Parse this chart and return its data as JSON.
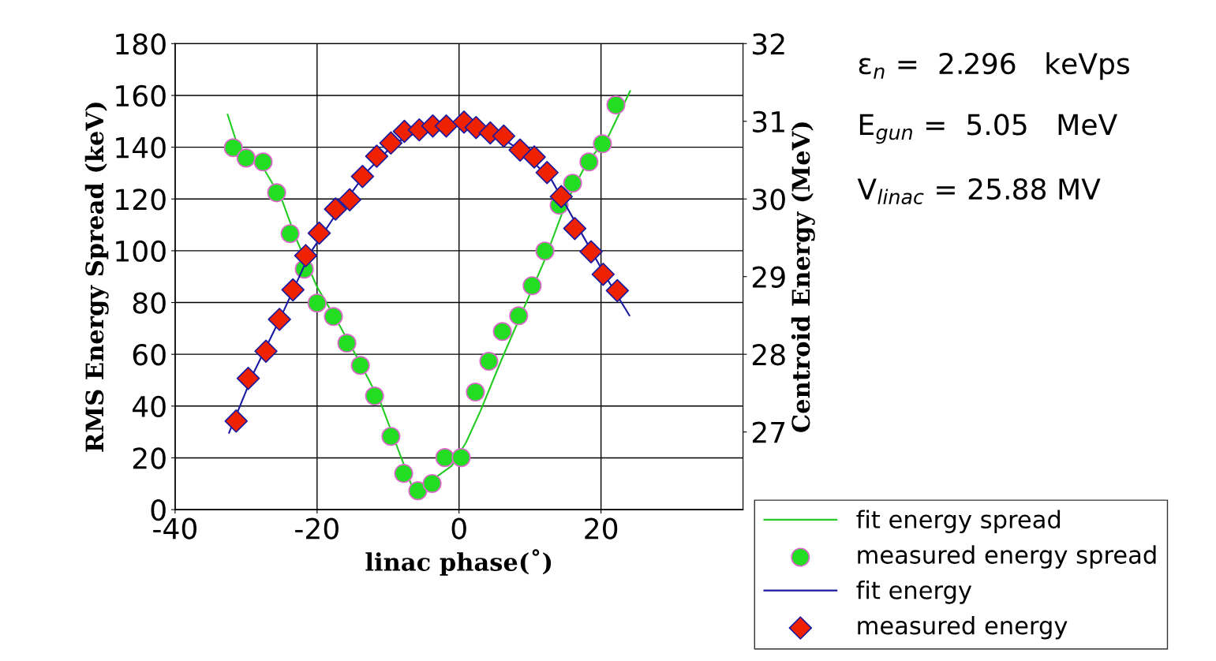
{
  "chart_data": {
    "type": "line",
    "xlabel": "linac phase(˚)",
    "ylabel": "RMS Energy Spread (keV)",
    "y2label": "Centroid Energy (MeV)",
    "xlim": [
      -40,
      40
    ],
    "xticks": [
      -40,
      -20,
      0,
      20
    ],
    "ylim": [
      0,
      180
    ],
    "yticks": [
      0,
      20,
      40,
      60,
      80,
      100,
      120,
      140,
      160,
      180
    ],
    "y2lim": [
      26,
      32
    ],
    "y2ticks": [
      27,
      28,
      29,
      30,
      31,
      32
    ],
    "grid": true,
    "legend": "bottom right",
    "annotations": [
      "ε$_{n}$ =  2.296   keVps",
      "E$_{gun}$ =  5.05   MeV",
      "V$_{linac}$ = 25.88 MV"
    ],
    "series": [
      {
        "name": "fit energy spread",
        "color": "#22cc22",
        "marker": "none",
        "line_style": "solid",
        "x": [
          -32.6,
          -31,
          -28,
          -25,
          -23,
          -20,
          -17,
          -14,
          -11,
          -8,
          -6.5,
          -5,
          -3,
          -1,
          1,
          3,
          6,
          9,
          12,
          15,
          18,
          21,
          24.1
        ],
        "values": [
          152.6,
          139,
          134,
          120,
          105,
          86,
          72,
          57,
          41,
          19,
          8,
          7,
          13,
          17,
          26,
          38,
          58,
          77,
          96,
          118,
          134,
          144,
          161.7
        ]
      },
      {
        "name": "measured energy spread",
        "type": "scatter",
        "color": "#22dd22",
        "marker": "circle",
        "x": [
          -31.8,
          -30,
          -27.6,
          -25.7,
          -23.8,
          -21.8,
          -20,
          -17.7,
          -15.8,
          -13.9,
          -11.9,
          -9.6,
          -7.8,
          -5.8,
          -3.8,
          -2,
          0.3,
          2.3,
          4.2,
          6.1,
          8.4,
          10.3,
          12.1,
          14.1,
          16,
          18.3,
          20.2,
          22.1
        ],
        "values": [
          139.8,
          135.8,
          134.3,
          122.4,
          106.6,
          92.9,
          79.8,
          74.6,
          64.3,
          55.7,
          43.9,
          28.3,
          14.0,
          7.3,
          10.1,
          20.1,
          20.1,
          45.4,
          57.3,
          68.8,
          74.9,
          86.5,
          99.9,
          117.6,
          126.1,
          134.3,
          141.3,
          156.3
        ]
      },
      {
        "name": "fit energy",
        "axis": "y2",
        "color": "#1a1aa0",
        "marker": "none",
        "line_style": "solid",
        "x": [
          -32.4,
          -29,
          -25,
          -21,
          -17,
          -13,
          -9,
          -5,
          -1,
          1,
          5,
          9,
          13,
          17,
          21,
          24
        ],
        "values": [
          26.99,
          27.75,
          28.5,
          29.3,
          29.85,
          30.35,
          30.72,
          30.9,
          30.97,
          30.98,
          30.85,
          30.6,
          30.25,
          29.6,
          28.95,
          28.5
        ]
      },
      {
        "name": "measured energy",
        "type": "scatter",
        "axis": "y2",
        "color": "#ee2200",
        "marker": "diamond",
        "x": [
          -31.4,
          -29.7,
          -27.2,
          -25.3,
          -23.4,
          -21.6,
          -19.7,
          -17.4,
          -15.4,
          -13.6,
          -11.6,
          -9.6,
          -7.7,
          -5.6,
          -3.7,
          -1.8,
          0.7,
          2.4,
          4.4,
          6.3,
          8.6,
          10.6,
          12.4,
          14.4,
          16.3,
          18.6,
          20.3,
          22.3
        ],
        "values": [
          27.14,
          27.69,
          28.04,
          28.45,
          28.83,
          29.27,
          29.56,
          29.87,
          29.99,
          30.29,
          30.55,
          30.72,
          30.87,
          30.89,
          30.94,
          30.94,
          30.99,
          30.92,
          30.85,
          30.81,
          30.63,
          30.54,
          30.34,
          30.03,
          29.62,
          29.32,
          29.03,
          28.82
        ]
      }
    ]
  }
}
